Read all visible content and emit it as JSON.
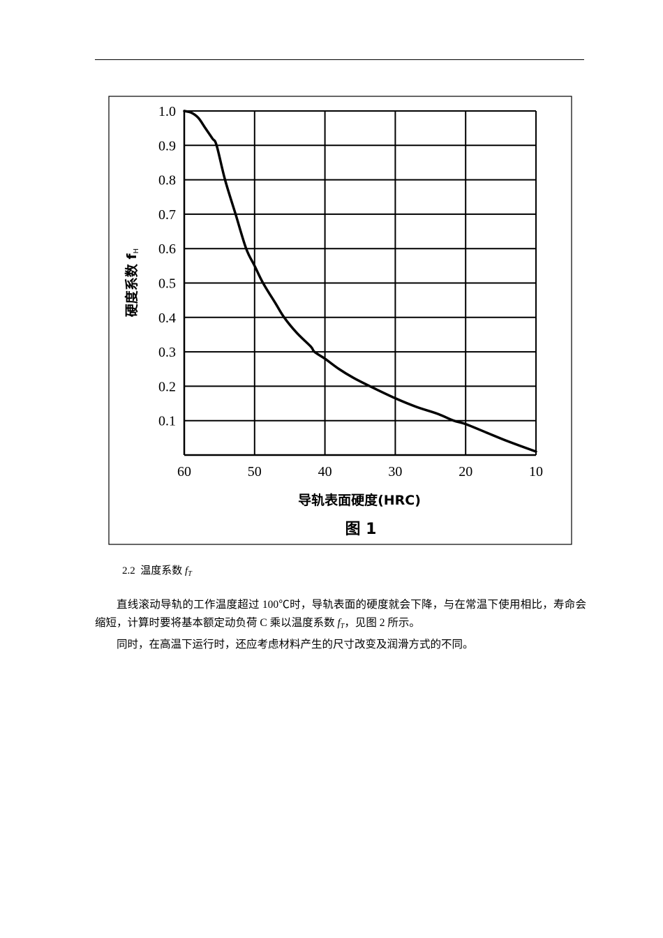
{
  "document": {
    "section": {
      "number": "2.2",
      "title": "温度系数",
      "symbol": "f",
      "symbol_sub": "T"
    },
    "paragraphs": [
      {
        "text_before": "直线滚动导轨的工作温度超过 100℃时，导轨表面的硬度就会下降，与在常温下使用相比，寿命会缩短，计算时要将基本额定动负荷 C 乘以温度系数 ",
        "symbol": "f",
        "symbol_sub": "T",
        "text_after": "，见图 2 所示。"
      },
      {
        "text_before": "同时，在高温下运行时，还应考虑材料产生的尺寸改变及润滑方式的不同。",
        "symbol": "",
        "symbol_sub": "",
        "text_after": ""
      }
    ]
  },
  "chart_data": {
    "type": "line",
    "title": "图 1",
    "xlabel": "导轨表面硬度(HRC)",
    "ylabel": "硬度系数 f",
    "ylabel_sub": "H",
    "x_ticks": [
      60,
      50,
      40,
      30,
      20,
      10
    ],
    "y_ticks": [
      "1.0",
      "0.9",
      "0.8",
      "0.7",
      "0.6",
      "0.5",
      "0.4",
      "0.3",
      "0.2",
      "0.1"
    ],
    "xlim": [
      60,
      10
    ],
    "ylim": [
      0,
      1.0
    ],
    "x_reversed": true,
    "grid": true,
    "legend": null,
    "series": [
      {
        "name": "硬度系数 fH",
        "x": [
          60,
          59,
          58,
          57,
          56,
          55.4,
          54.2,
          52.7,
          51.2,
          50,
          48.8,
          47,
          45.8,
          44,
          42,
          41.5,
          40,
          38,
          36,
          33.6,
          30,
          27,
          24,
          21.7,
          20,
          17,
          14,
          10
        ],
        "y": [
          1.0,
          0.995,
          0.98,
          0.95,
          0.92,
          0.9,
          0.8,
          0.7,
          0.6,
          0.55,
          0.5,
          0.44,
          0.4,
          0.355,
          0.315,
          0.3,
          0.28,
          0.25,
          0.225,
          0.2,
          0.165,
          0.14,
          0.12,
          0.1,
          0.09,
          0.065,
          0.04,
          0.01
        ]
      }
    ]
  }
}
